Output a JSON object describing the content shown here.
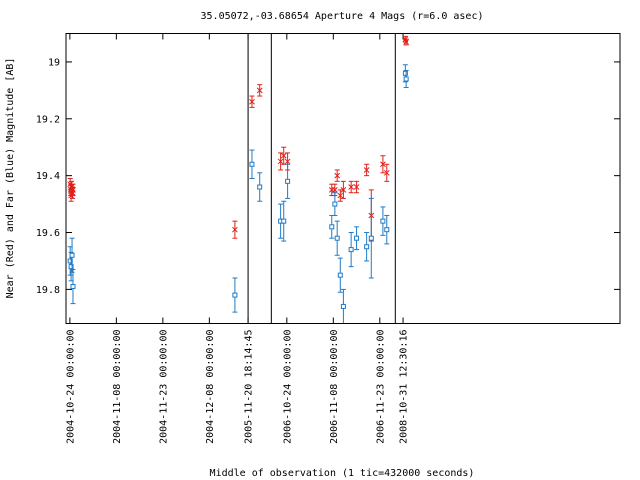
{
  "chart_data": {
    "type": "scatter",
    "title": "35.05072,-03.68654   Aperture 4 Mags (r=6.0 asec)",
    "xlabel": "Middle of observation (1 tic=432000 seconds)",
    "ylabel": "Near (Red) and Far (Blue) Magnitude [AB]",
    "y_inverted": true,
    "ylim": [
      19.92,
      18.9
    ],
    "yticks": [
      19,
      19.2,
      19.4,
      19.6,
      19.8
    ],
    "ytick_labels": [
      "19",
      "19.2",
      "19.4",
      "19.6",
      "19.8"
    ],
    "x_unit": "tic (432000 seconds)",
    "xlim": [
      -0.25,
      35.5
    ],
    "xticks": [
      {
        "x": 0,
        "label": "2004-10-24 00:00:00"
      },
      {
        "x": 3,
        "label": "2004-11-08 00:00:00"
      },
      {
        "x": 6,
        "label": "2004-11-23 00:00:00"
      },
      {
        "x": 9,
        "label": "2004-12-08 00:00:00"
      },
      {
        "x": 11.5,
        "label": "2005-11-20 18:14:45"
      },
      {
        "x": 14,
        "label": "2006-10-24 00:00:00"
      },
      {
        "x": 17,
        "label": "2006-11-08 00:00:00"
      },
      {
        "x": 20,
        "label": "2006-11-23 00:00:00"
      },
      {
        "x": 21.5,
        "label": "2008-10-31 12:30:16"
      }
    ],
    "segment_breaks": [
      11.5,
      13,
      21
    ],
    "grid": false,
    "legend": "none",
    "series": [
      {
        "name": "Near (Red)",
        "color": "#e0201a",
        "marker": "x",
        "points": [
          {
            "x": 0.02,
            "y": 19.43,
            "err": 0.02
          },
          {
            "x": 0.05,
            "y": 19.45,
            "err": 0.02
          },
          {
            "x": 0.08,
            "y": 19.47,
            "err": 0.02
          },
          {
            "x": 0.11,
            "y": 19.44,
            "err": 0.02
          },
          {
            "x": 0.14,
            "y": 19.45,
            "err": 0.02
          },
          {
            "x": 0.17,
            "y": 19.46,
            "err": 0.02
          },
          {
            "x": 0.2,
            "y": 19.45,
            "err": 0.02
          },
          {
            "x": 10.65,
            "y": 19.59,
            "err": 0.03
          },
          {
            "x": 11.75,
            "y": 19.14,
            "err": 0.02
          },
          {
            "x": 12.25,
            "y": 19.1,
            "err": 0.02
          },
          {
            "x": 13.6,
            "y": 19.35,
            "err": 0.03
          },
          {
            "x": 13.8,
            "y": 19.33,
            "err": 0.03
          },
          {
            "x": 14.05,
            "y": 19.35,
            "err": 0.03
          },
          {
            "x": 16.9,
            "y": 19.45,
            "err": 0.02
          },
          {
            "x": 17.1,
            "y": 19.45,
            "err": 0.02
          },
          {
            "x": 17.25,
            "y": 19.4,
            "err": 0.02
          },
          {
            "x": 17.45,
            "y": 19.47,
            "err": 0.02
          },
          {
            "x": 17.65,
            "y": 19.45,
            "err": 0.03
          },
          {
            "x": 18.15,
            "y": 19.44,
            "err": 0.02
          },
          {
            "x": 18.5,
            "y": 19.44,
            "err": 0.02
          },
          {
            "x": 19.15,
            "y": 19.38,
            "err": 0.02
          },
          {
            "x": 19.45,
            "y": 19.54,
            "err": 0.09
          },
          {
            "x": 20.2,
            "y": 19.36,
            "err": 0.03
          },
          {
            "x": 20.45,
            "y": 19.39,
            "err": 0.03
          },
          {
            "x": 21.65,
            "y": 18.92,
            "err": 0.01
          },
          {
            "x": 21.7,
            "y": 18.93,
            "err": 0.01
          }
        ]
      },
      {
        "name": "Far (Blue)",
        "color": "#1f7bc8",
        "marker": "square",
        "points": [
          {
            "x": 0.02,
            "y": 19.7,
            "err": 0.05
          },
          {
            "x": 0.08,
            "y": 19.72,
            "err": 0.05
          },
          {
            "x": 0.14,
            "y": 19.68,
            "err": 0.06
          },
          {
            "x": 0.2,
            "y": 19.79,
            "err": 0.06
          },
          {
            "x": 10.65,
            "y": 19.82,
            "err": 0.06
          },
          {
            "x": 11.75,
            "y": 19.36,
            "err": 0.05
          },
          {
            "x": 12.25,
            "y": 19.44,
            "err": 0.05
          },
          {
            "x": 13.6,
            "y": 19.56,
            "err": 0.06
          },
          {
            "x": 13.8,
            "y": 19.56,
            "err": 0.07
          },
          {
            "x": 14.05,
            "y": 19.42,
            "err": 0.06
          },
          {
            "x": 16.9,
            "y": 19.58,
            "err": 0.04
          },
          {
            "x": 17.1,
            "y": 19.5,
            "err": 0.04
          },
          {
            "x": 17.25,
            "y": 19.62,
            "err": 0.06
          },
          {
            "x": 17.45,
            "y": 19.75,
            "err": 0.06
          },
          {
            "x": 17.65,
            "y": 19.86,
            "err": 0.06
          },
          {
            "x": 18.15,
            "y": 19.66,
            "err": 0.06
          },
          {
            "x": 18.5,
            "y": 19.62,
            "err": 0.04
          },
          {
            "x": 19.15,
            "y": 19.65,
            "err": 0.05
          },
          {
            "x": 19.45,
            "y": 19.62,
            "err": 0.14
          },
          {
            "x": 20.2,
            "y": 19.56,
            "err": 0.05
          },
          {
            "x": 20.45,
            "y": 19.59,
            "err": 0.05
          },
          {
            "x": 21.65,
            "y": 19.04,
            "err": 0.03
          },
          {
            "x": 21.7,
            "y": 19.06,
            "err": 0.03
          }
        ]
      }
    ]
  }
}
